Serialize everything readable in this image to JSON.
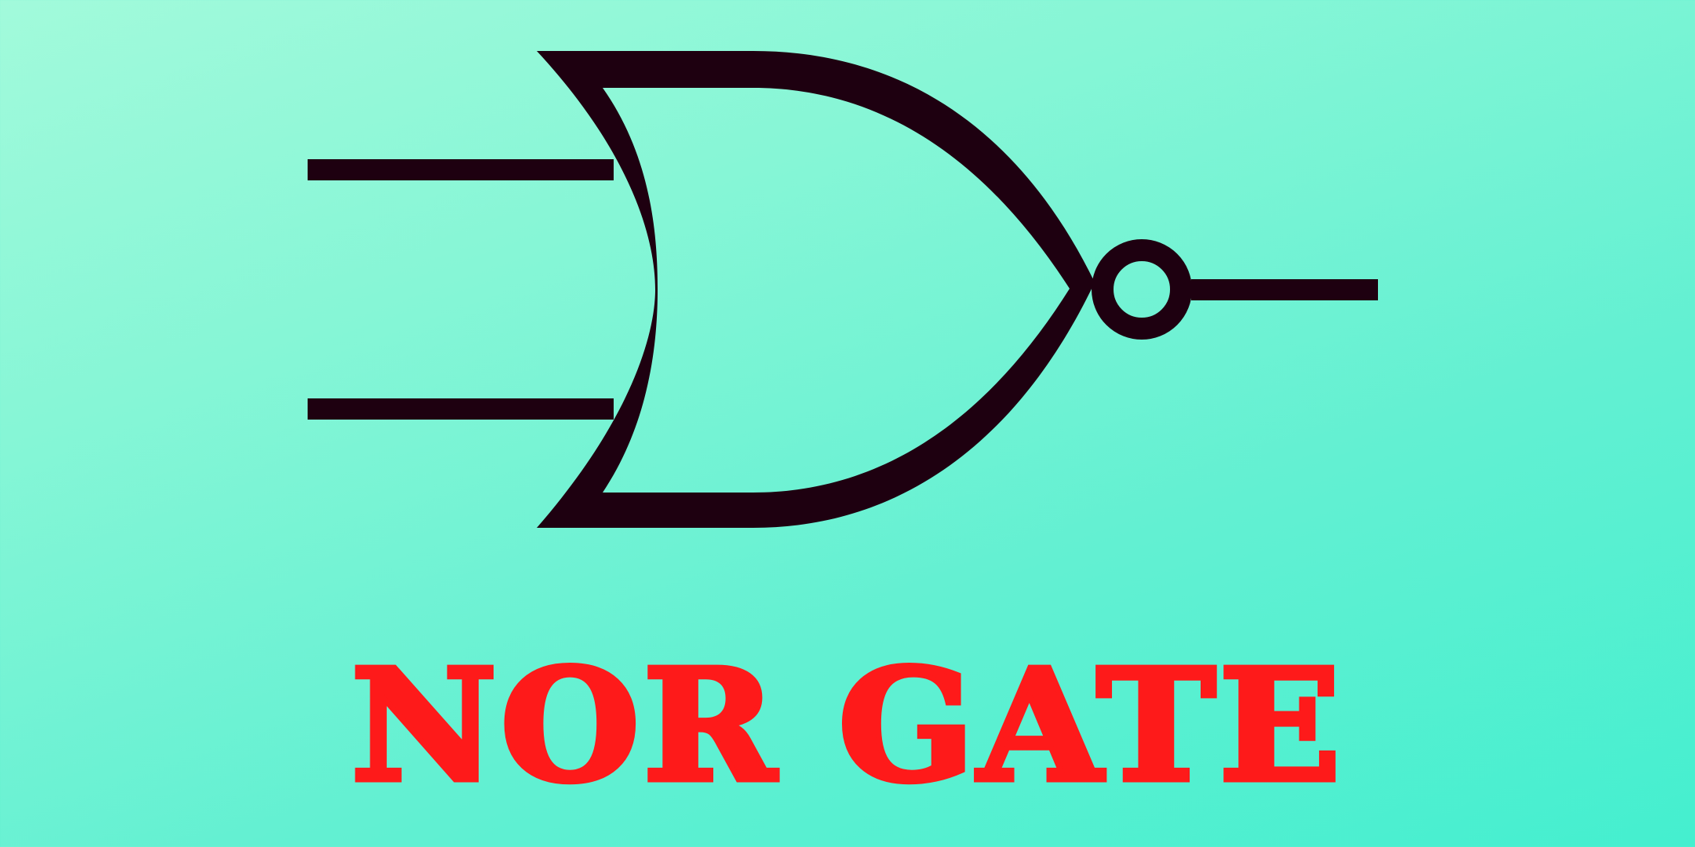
{
  "diagram": {
    "symbol": "nor-gate-symbol",
    "inputs": [
      "input-a",
      "input-b"
    ],
    "output": "output-q",
    "line_color": "#1e0010",
    "title_color": "#fe1a1a",
    "background_colors": [
      "#a2fadb",
      "#44efcf"
    ]
  },
  "title": "NOR GATE"
}
